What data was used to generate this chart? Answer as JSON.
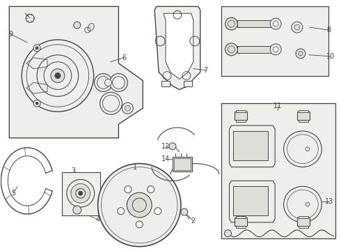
{
  "bg_color": "#ffffff",
  "line_color": "#444444",
  "fill_light": "#f0eeeb",
  "fill_medium": "#e0ddd8",
  "fig_width": 4.9,
  "fig_height": 3.6,
  "dpi": 100
}
